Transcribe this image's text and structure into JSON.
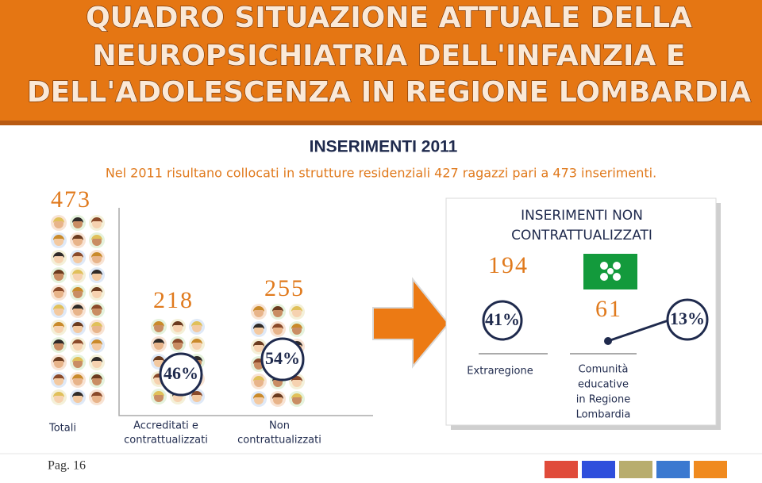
{
  "header": {
    "title_lines": [
      "QUADRO SITUAZIONE ATTUALE DELLA",
      "NEUROPSICHIATRIA DELL'INFANZIA E",
      "DELL'ADOLESCENZA IN REGIONE LOMBARDIA"
    ]
  },
  "subtitle": "INSERIMENTI 2011",
  "intro": "Nel 2011 risultano collocati in strutture residenziali 427 ragazzi pari a 473 inserimenti.",
  "groups": [
    {
      "label": "Totali",
      "count": "473"
    },
    {
      "label_lines": [
        "Accreditati e",
        "contrattualizzati"
      ],
      "count": "218",
      "percent": "46%"
    },
    {
      "label_lines": [
        "Non",
        "contrattualizzati"
      ],
      "count": "255",
      "percent": "54%"
    }
  ],
  "box": {
    "title_lines": [
      "INSERIMENTI NON",
      "CONTRATTUALIZZATI"
    ],
    "items": [
      {
        "label": "Extraregione",
        "count": "194",
        "percent": "41%"
      },
      {
        "label_lines": [
          "Comunità",
          "educative",
          "in Regione",
          "Lombardia"
        ],
        "count": "61",
        "percent": "13%"
      }
    ]
  },
  "footer": "Pag. 16"
}
